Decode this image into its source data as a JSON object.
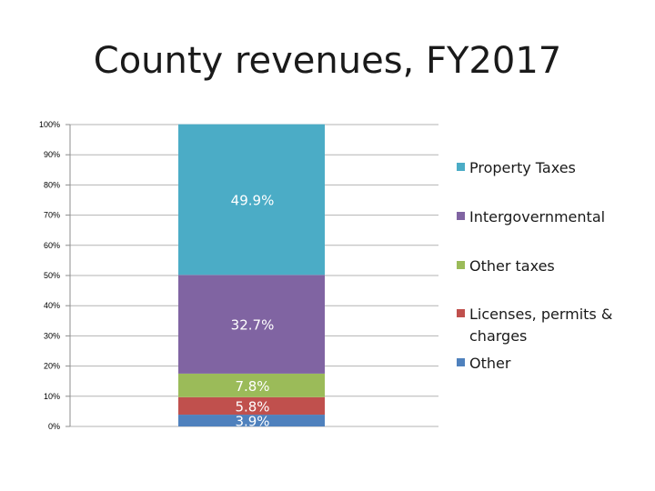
{
  "chart_data": {
    "type": "bar",
    "stacked": true,
    "title": "County revenues, FY2017",
    "categories": [
      ""
    ],
    "ylim": [
      0,
      100
    ],
    "ytick_labels": [
      "0%",
      "10%",
      "20%",
      "30%",
      "40%",
      "50%",
      "60%",
      "70%",
      "80%",
      "90%",
      "100%"
    ],
    "grid": true,
    "legend_position": "right",
    "series": [
      {
        "name": "Other",
        "values": [
          3.9
        ],
        "label": "3.9%",
        "color": "#4f81bd"
      },
      {
        "name": "Licenses, permits & charges",
        "values": [
          5.8
        ],
        "label": "5.8%",
        "color": "#c0504d"
      },
      {
        "name": "Other taxes",
        "values": [
          7.8
        ],
        "label": "7.8%",
        "color": "#9bbb59"
      },
      {
        "name": "Intergovernmental",
        "values": [
          32.7
        ],
        "label": "32.7%",
        "color": "#8064a2"
      },
      {
        "name": "Property Taxes",
        "values": [
          49.9
        ],
        "label": "49.9%",
        "color": "#4bacc6"
      }
    ],
    "legend_order": [
      "Property Taxes",
      "Intergovernmental",
      "Other taxes",
      "Licenses, permits & charges",
      "Other"
    ]
  }
}
